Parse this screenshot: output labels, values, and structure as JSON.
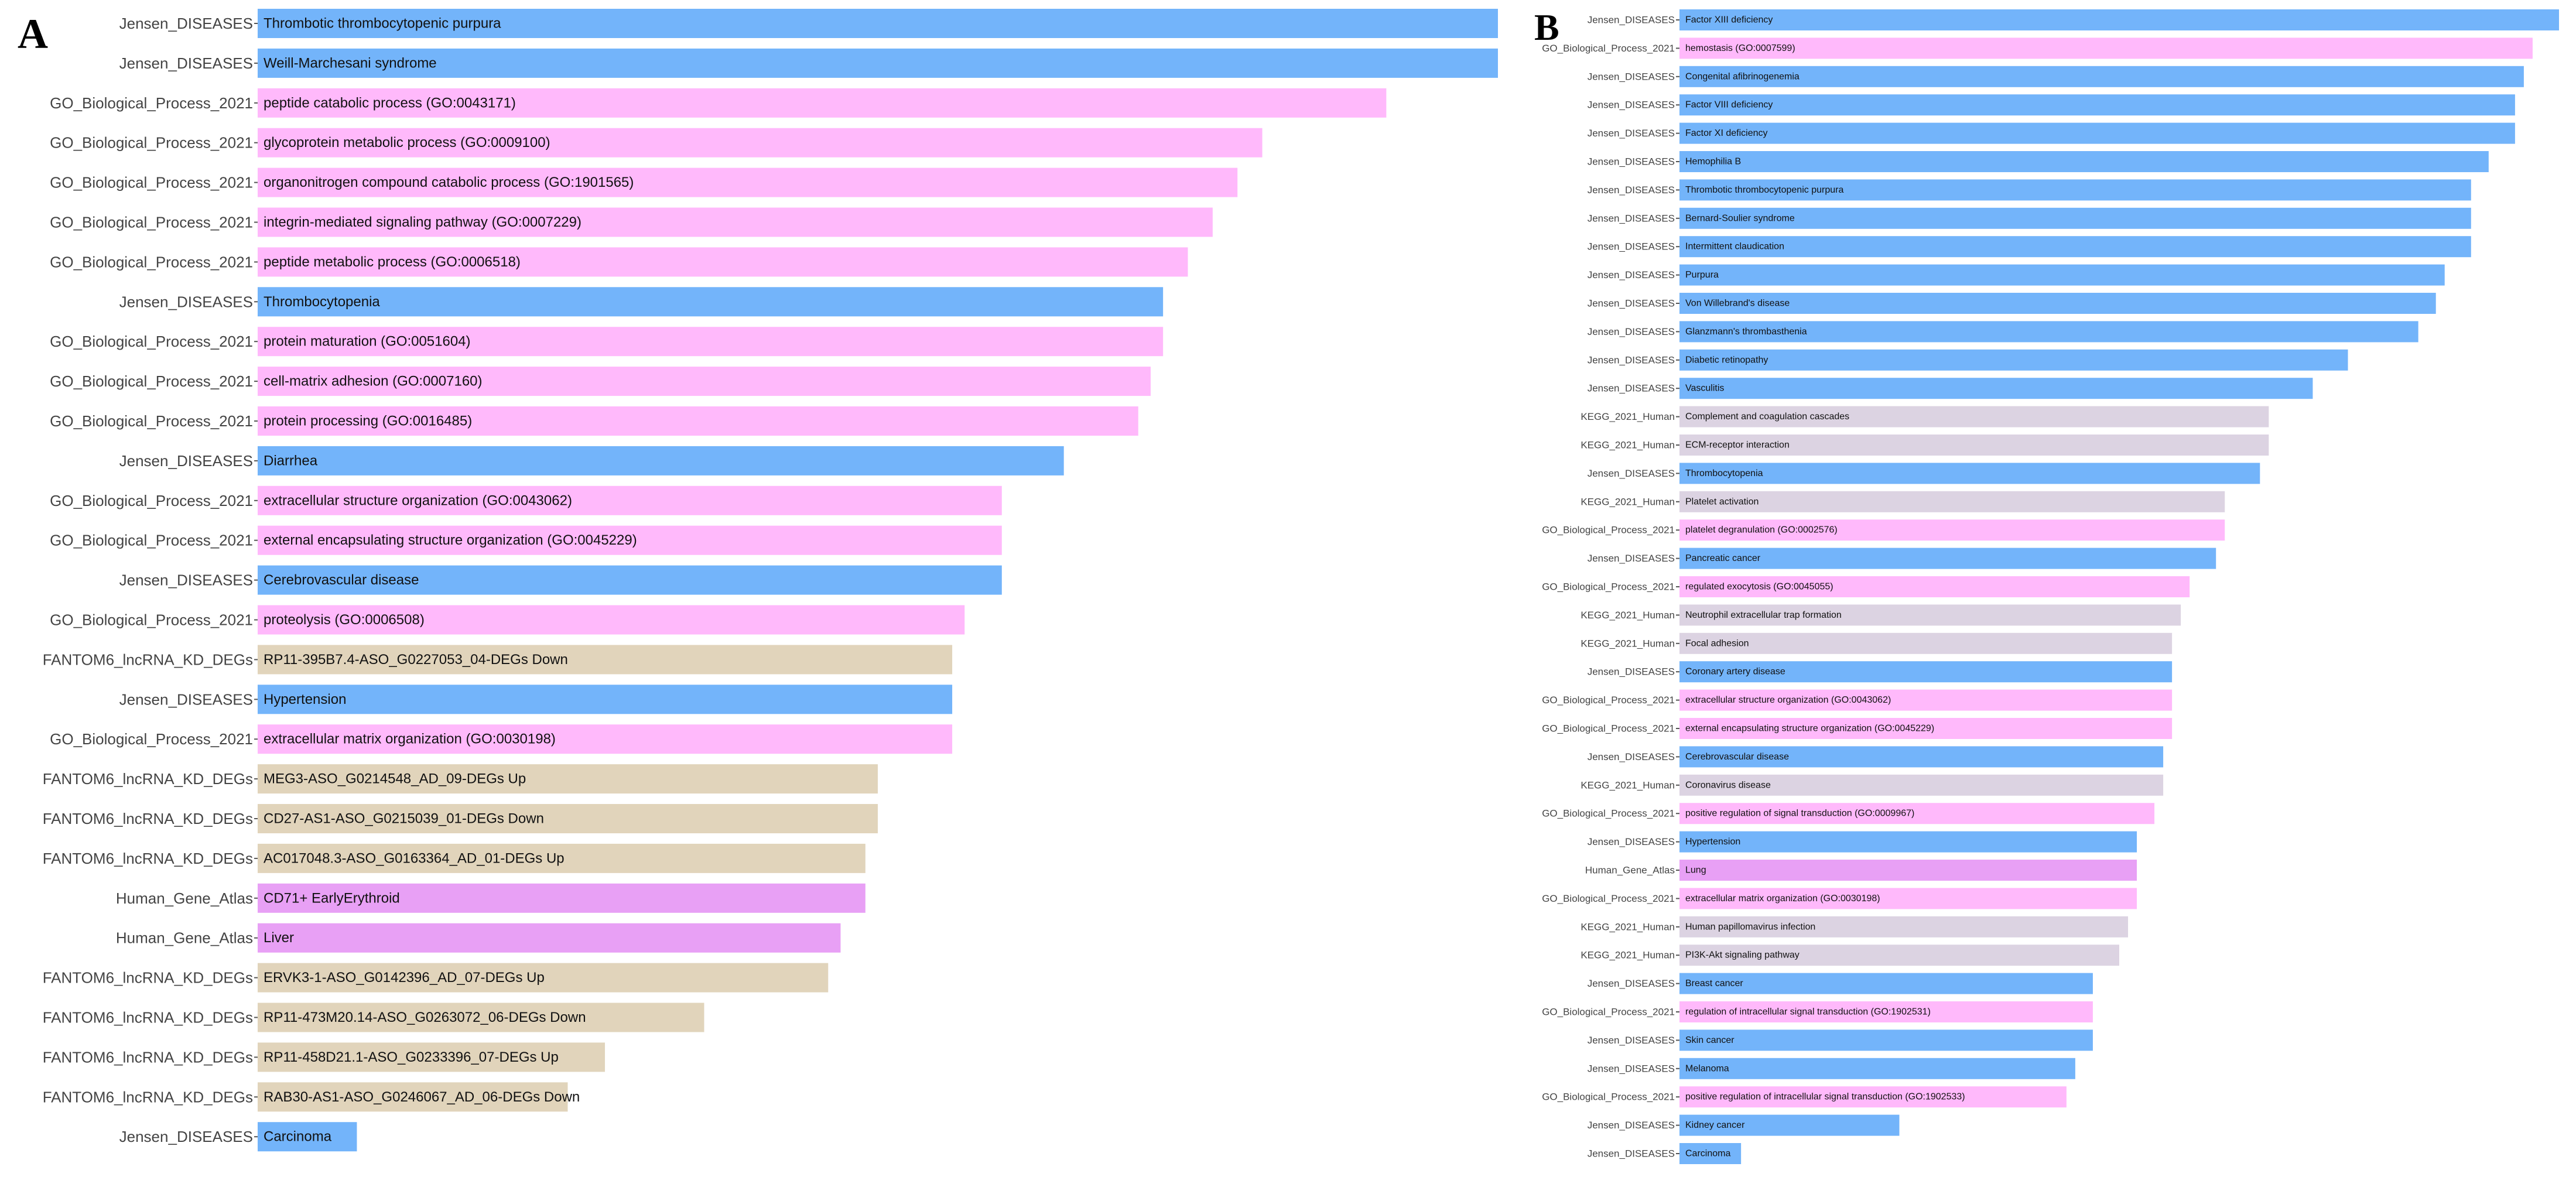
{
  "colors": {
    "Jensen_DISEASES": "#73B4FA",
    "GO_Biological_Process_2021": "#FFB9FB",
    "FANTOM6_lncRNA_KD_DEGs": "#E1D4BB",
    "Human_Gene_Atlas": "#E8A0F5",
    "KEGG_2021_Human": "#DCD3E2"
  },
  "chart_data": [
    {
      "panel": "A",
      "type": "bar",
      "orientation": "horizontal",
      "xlim": [
        0,
        1
      ],
      "axes_shown": false,
      "bars": [
        {
          "library": "Jensen_DISEASES",
          "term": "Thrombotic thrombocytopenic purpura",
          "value": 1.0
        },
        {
          "library": "Jensen_DISEASES",
          "term": "Weill-Marchesani syndrome",
          "value": 1.0
        },
        {
          "library": "GO_Biological_Process_2021",
          "term": "peptide catabolic process (GO:0043171)",
          "value": 0.91
        },
        {
          "library": "GO_Biological_Process_2021",
          "term": "glycoprotein metabolic process (GO:0009100)",
          "value": 0.81
        },
        {
          "library": "GO_Biological_Process_2021",
          "term": "organonitrogen compound catabolic process (GO:1901565)",
          "value": 0.79
        },
        {
          "library": "GO_Biological_Process_2021",
          "term": "integrin-mediated signaling pathway (GO:0007229)",
          "value": 0.77
        },
        {
          "library": "GO_Biological_Process_2021",
          "term": "peptide metabolic process (GO:0006518)",
          "value": 0.75
        },
        {
          "library": "Jensen_DISEASES",
          "term": "Thrombocytopenia",
          "value": 0.73
        },
        {
          "library": "GO_Biological_Process_2021",
          "term": "protein maturation (GO:0051604)",
          "value": 0.73
        },
        {
          "library": "GO_Biological_Process_2021",
          "term": "cell-matrix adhesion (GO:0007160)",
          "value": 0.72
        },
        {
          "library": "GO_Biological_Process_2021",
          "term": "protein processing (GO:0016485)",
          "value": 0.71
        },
        {
          "library": "Jensen_DISEASES",
          "term": "Diarrhea",
          "value": 0.65
        },
        {
          "library": "GO_Biological_Process_2021",
          "term": "extracellular structure organization (GO:0043062)",
          "value": 0.6
        },
        {
          "library": "GO_Biological_Process_2021",
          "term": "external encapsulating structure organization (GO:0045229)",
          "value": 0.6
        },
        {
          "library": "Jensen_DISEASES",
          "term": "Cerebrovascular disease",
          "value": 0.6
        },
        {
          "library": "GO_Biological_Process_2021",
          "term": "proteolysis (GO:0006508)",
          "value": 0.57
        },
        {
          "library": "FANTOM6_lncRNA_KD_DEGs",
          "term": "RP11-395B7.4-ASO_G0227053_04-DEGs Down",
          "value": 0.56
        },
        {
          "library": "Jensen_DISEASES",
          "term": "Hypertension",
          "value": 0.56
        },
        {
          "library": "GO_Biological_Process_2021",
          "term": "extracellular matrix organization (GO:0030198)",
          "value": 0.56
        },
        {
          "library": "FANTOM6_lncRNA_KD_DEGs",
          "term": "MEG3-ASO_G0214548_AD_09-DEGs Up",
          "value": 0.5
        },
        {
          "library": "FANTOM6_lncRNA_KD_DEGs",
          "term": "CD27-AS1-ASO_G0215039_01-DEGs Down",
          "value": 0.5
        },
        {
          "library": "FANTOM6_lncRNA_KD_DEGs",
          "term": "AC017048.3-ASO_G0163364_AD_01-DEGs Up",
          "value": 0.49
        },
        {
          "library": "Human_Gene_Atlas",
          "term": "CD71+ EarlyErythroid",
          "value": 0.49
        },
        {
          "library": "Human_Gene_Atlas",
          "term": "Liver",
          "value": 0.47
        },
        {
          "library": "FANTOM6_lncRNA_KD_DEGs",
          "term": "ERVK3-1-ASO_G0142396_AD_07-DEGs Up",
          "value": 0.46
        },
        {
          "library": "FANTOM6_lncRNA_KD_DEGs",
          "term": "RP11-473M20.14-ASO_G0263072_06-DEGs Down",
          "value": 0.36
        },
        {
          "library": "FANTOM6_lncRNA_KD_DEGs",
          "term": "RP11-458D21.1-ASO_G0233396_07-DEGs Up",
          "value": 0.28
        },
        {
          "library": "FANTOM6_lncRNA_KD_DEGs",
          "term": "RAB30-AS1-ASO_G0246067_AD_06-DEGs Down",
          "value": 0.25
        },
        {
          "library": "Jensen_DISEASES",
          "term": "Carcinoma",
          "value": 0.08
        }
      ]
    },
    {
      "panel": "B",
      "type": "bar",
      "orientation": "horizontal",
      "xlim": [
        0,
        1
      ],
      "axes_shown": false,
      "bars": [
        {
          "library": "Jensen_DISEASES",
          "term": "Factor XIII deficiency",
          "value": 1.0
        },
        {
          "library": "GO_Biological_Process_2021",
          "term": "hemostasis (GO:0007599)",
          "value": 0.97
        },
        {
          "library": "Jensen_DISEASES",
          "term": "Congenital afibrinogenemia",
          "value": 0.96
        },
        {
          "library": "Jensen_DISEASES",
          "term": "Factor VIII deficiency",
          "value": 0.95
        },
        {
          "library": "Jensen_DISEASES",
          "term": "Factor XI deficiency",
          "value": 0.95
        },
        {
          "library": "Jensen_DISEASES",
          "term": "Hemophilia B",
          "value": 0.92
        },
        {
          "library": "Jensen_DISEASES",
          "term": "Thrombotic thrombocytopenic purpura",
          "value": 0.9
        },
        {
          "library": "Jensen_DISEASES",
          "term": "Bernard-Soulier syndrome",
          "value": 0.9
        },
        {
          "library": "Jensen_DISEASES",
          "term": "Intermittent claudication",
          "value": 0.9
        },
        {
          "library": "Jensen_DISEASES",
          "term": "Purpura",
          "value": 0.87
        },
        {
          "library": "Jensen_DISEASES",
          "term": "Von Willebrand's disease",
          "value": 0.86
        },
        {
          "library": "Jensen_DISEASES",
          "term": "Glanzmann's thrombasthenia",
          "value": 0.84
        },
        {
          "library": "Jensen_DISEASES",
          "term": "Diabetic retinopathy",
          "value": 0.76
        },
        {
          "library": "Jensen_DISEASES",
          "term": "Vasculitis",
          "value": 0.72
        },
        {
          "library": "KEGG_2021_Human",
          "term": "Complement and coagulation cascades",
          "value": 0.67
        },
        {
          "library": "KEGG_2021_Human",
          "term": "ECM-receptor interaction",
          "value": 0.67
        },
        {
          "library": "Jensen_DISEASES",
          "term": "Thrombocytopenia",
          "value": 0.66
        },
        {
          "library": "KEGG_2021_Human",
          "term": "Platelet activation",
          "value": 0.62
        },
        {
          "library": "GO_Biological_Process_2021",
          "term": "platelet degranulation (GO:0002576)",
          "value": 0.62
        },
        {
          "library": "Jensen_DISEASES",
          "term": "Pancreatic cancer",
          "value": 0.61
        },
        {
          "library": "GO_Biological_Process_2021",
          "term": "regulated exocytosis (GO:0045055)",
          "value": 0.58
        },
        {
          "library": "KEGG_2021_Human",
          "term": "Neutrophil extracellular trap formation",
          "value": 0.57
        },
        {
          "library": "KEGG_2021_Human",
          "term": "Focal adhesion",
          "value": 0.56
        },
        {
          "library": "Jensen_DISEASES",
          "term": "Coronary artery disease",
          "value": 0.56
        },
        {
          "library": "GO_Biological_Process_2021",
          "term": "extracellular structure organization (GO:0043062)",
          "value": 0.56
        },
        {
          "library": "GO_Biological_Process_2021",
          "term": "external encapsulating structure organization (GO:0045229)",
          "value": 0.56
        },
        {
          "library": "Jensen_DISEASES",
          "term": "Cerebrovascular disease",
          "value": 0.55
        },
        {
          "library": "KEGG_2021_Human",
          "term": "Coronavirus disease",
          "value": 0.55
        },
        {
          "library": "GO_Biological_Process_2021",
          "term": "positive regulation of signal transduction (GO:0009967)",
          "value": 0.54
        },
        {
          "library": "Jensen_DISEASES",
          "term": "Hypertension",
          "value": 0.52
        },
        {
          "library": "Human_Gene_Atlas",
          "term": "Lung",
          "value": 0.52
        },
        {
          "library": "GO_Biological_Process_2021",
          "term": "extracellular matrix organization (GO:0030198)",
          "value": 0.52
        },
        {
          "library": "KEGG_2021_Human",
          "term": "Human papillomavirus infection",
          "value": 0.51
        },
        {
          "library": "KEGG_2021_Human",
          "term": "PI3K-Akt signaling pathway",
          "value": 0.5
        },
        {
          "library": "Jensen_DISEASES",
          "term": "Breast cancer",
          "value": 0.47
        },
        {
          "library": "GO_Biological_Process_2021",
          "term": "regulation of intracellular signal transduction (GO:1902531)",
          "value": 0.47
        },
        {
          "library": "Jensen_DISEASES",
          "term": "Skin cancer",
          "value": 0.47
        },
        {
          "library": "Jensen_DISEASES",
          "term": "Melanoma",
          "value": 0.45
        },
        {
          "library": "GO_Biological_Process_2021",
          "term": "positive regulation of intracellular signal transduction (GO:1902533)",
          "value": 0.44
        },
        {
          "library": "Jensen_DISEASES",
          "term": "Kidney cancer",
          "value": 0.25
        },
        {
          "library": "Jensen_DISEASES",
          "term": "Carcinoma",
          "value": 0.07
        }
      ]
    }
  ]
}
